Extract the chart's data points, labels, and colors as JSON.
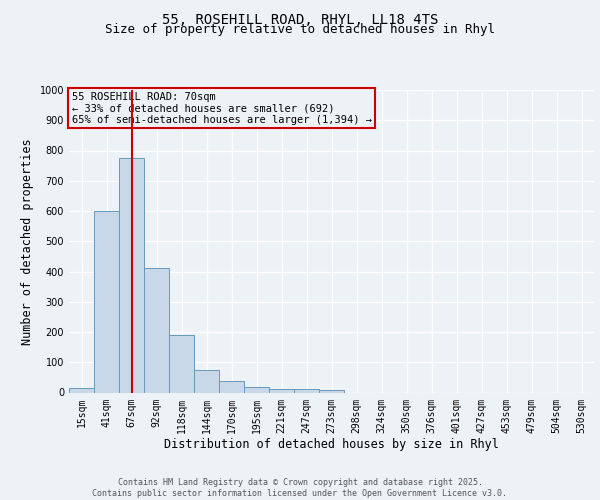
{
  "title1": "55, ROSEHILL ROAD, RHYL, LL18 4TS",
  "title2": "Size of property relative to detached houses in Rhyl",
  "xlabel": "Distribution of detached houses by size in Rhyl",
  "ylabel": "Number of detached properties",
  "bin_labels": [
    "15sqm",
    "41sqm",
    "67sqm",
    "92sqm",
    "118sqm",
    "144sqm",
    "170sqm",
    "195sqm",
    "221sqm",
    "247sqm",
    "273sqm",
    "298sqm",
    "324sqm",
    "350sqm",
    "376sqm",
    "401sqm",
    "427sqm",
    "453sqm",
    "479sqm",
    "504sqm",
    "530sqm"
  ],
  "bar_heights": [
    15,
    600,
    775,
    410,
    190,
    75,
    38,
    18,
    13,
    13,
    7,
    0,
    0,
    0,
    0,
    0,
    0,
    0,
    0,
    0,
    0
  ],
  "bar_color": "#c8d8e8",
  "bar_edge_color": "#6699bb",
  "vline_x_index": 2,
  "vline_color": "#cc0000",
  "annotation_text": "55 ROSEHILL ROAD: 70sqm\n← 33% of detached houses are smaller (692)\n65% of semi-detached houses are larger (1,394) →",
  "annotation_box_color": "#cc0000",
  "ylim": [
    0,
    1000
  ],
  "yticks": [
    0,
    100,
    200,
    300,
    400,
    500,
    600,
    700,
    800,
    900,
    1000
  ],
  "footer_text": "Contains HM Land Registry data © Crown copyright and database right 2025.\nContains public sector information licensed under the Open Government Licence v3.0.",
  "bg_color": "#edf2f7",
  "grid_color": "#ffffff",
  "title_fontsize": 10,
  "title2_fontsize": 9,
  "axis_label_fontsize": 8.5,
  "tick_fontsize": 7,
  "annot_fontsize": 7.5,
  "footer_fontsize": 6
}
